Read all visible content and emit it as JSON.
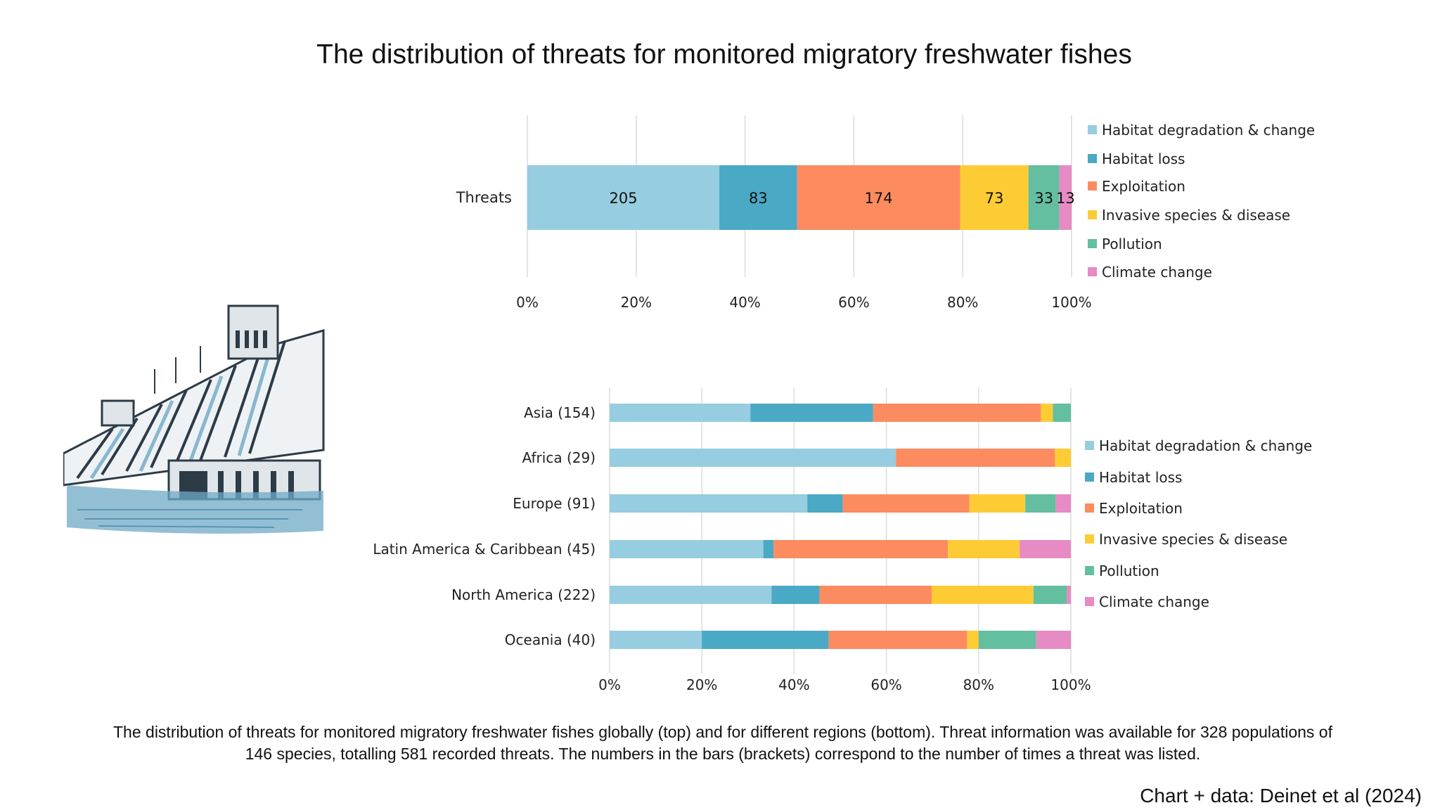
{
  "title": "The distribution of threats for monitored migratory freshwater fishes",
  "caption": "The distribution of threats for monitored migratory freshwater fishes globally (top) and for different regions (bottom). Threat information was available for 328 populations of 146 species, totalling 581 recorded threats. The numbers in the bars (brackets) correspond to the number of times a threat was listed.",
  "credit": "Chart + data: Deinet et al (2024)",
  "colors": {
    "Habitat degradation & change": "#96cde0",
    "Habitat loss": "#4aa9c4",
    "Exploitation": "#fd8b60",
    "Invasive species & disease": "#fdcc35",
    "Pollution": "#63bf9f",
    "Climate change": "#e68bc4"
  },
  "chart_data": [
    {
      "type": "bar",
      "orientation": "horizontal",
      "stacked": "100%",
      "categories": [
        "Threats"
      ],
      "series": [
        {
          "name": "Habitat degradation & change",
          "values": [
            205
          ]
        },
        {
          "name": "Habitat loss",
          "values": [
            83
          ]
        },
        {
          "name": "Exploitation",
          "values": [
            174
          ]
        },
        {
          "name": "Invasive species & disease",
          "values": [
            73
          ]
        },
        {
          "name": "Pollution",
          "values": [
            33
          ]
        },
        {
          "name": "Climate change",
          "values": [
            13
          ]
        }
      ],
      "data_labels": true,
      "xlim": [
        0,
        100
      ],
      "xticks": [
        "0%",
        "20%",
        "40%",
        "60%",
        "80%",
        "100%"
      ],
      "grid": "vertical",
      "legend": "right"
    },
    {
      "type": "bar",
      "orientation": "horizontal",
      "stacked": "100%",
      "categories": [
        "Asia (154)",
        "Africa (29)",
        "Europe (91)",
        "Latin America & Caribbean (45)",
        "North America (222)",
        "Oceania (40)"
      ],
      "series": [
        {
          "name": "Habitat degradation & change",
          "values": [
            47,
            18,
            39,
            15,
            78,
            8
          ]
        },
        {
          "name": "Habitat loss",
          "values": [
            41,
            0,
            7,
            1,
            23,
            11
          ]
        },
        {
          "name": "Exploitation",
          "values": [
            56,
            10,
            25,
            17,
            54,
            12
          ]
        },
        {
          "name": "Invasive species & disease",
          "values": [
            4,
            1,
            11,
            7,
            49,
            1
          ]
        },
        {
          "name": "Pollution",
          "values": [
            6,
            0,
            6,
            0,
            16,
            5
          ]
        },
        {
          "name": "Climate change",
          "values": [
            0,
            0,
            3,
            5,
            2,
            3
          ]
        }
      ],
      "data_labels": false,
      "xlim": [
        0,
        100
      ],
      "xticks": [
        "0%",
        "20%",
        "40%",
        "60%",
        "80%",
        "100%"
      ],
      "grid": "vertical",
      "legend": "right"
    }
  ]
}
